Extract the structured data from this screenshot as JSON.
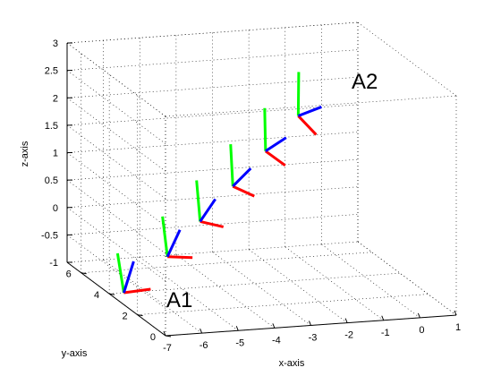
{
  "chart_data": {
    "type": "scatter",
    "title": "",
    "xlabel": "x-axis",
    "ylabel": "y-axis",
    "zlabel": "z-axis",
    "xlim": [
      -7,
      1
    ],
    "ylim": [
      0,
      7
    ],
    "zlim": [
      -1,
      3
    ],
    "x_ticks": [
      "-7",
      "-6",
      "-5",
      "-4",
      "-3",
      "-2",
      "-1",
      "0",
      "1"
    ],
    "y_ticks": [
      "0",
      "2",
      "4",
      "6"
    ],
    "z_ticks": [
      "-1",
      "-0.5",
      "0",
      "0.5",
      "1",
      "1.5",
      "2",
      "2.5",
      "3"
    ],
    "grid": true,
    "grid_style": "dotted",
    "view": "3d",
    "series": [
      {
        "color": "#ff0000",
        "points": [
          [
            -6.6,
            4.0,
            -1.0
          ],
          [
            -5.4,
            4.0,
            -0.4
          ],
          [
            -4.5,
            4.0,
            0.2
          ],
          [
            -3.6,
            4.0,
            0.8
          ],
          [
            -2.7,
            4.0,
            1.4
          ],
          [
            -1.8,
            4.0,
            2.0
          ]
        ]
      },
      {
        "color": "#00ff00",
        "points": [
          [
            -6.6,
            4.0,
            -1.0
          ],
          [
            -5.4,
            4.0,
            -0.4
          ],
          [
            -4.5,
            4.0,
            0.2
          ],
          [
            -3.6,
            4.0,
            0.8
          ],
          [
            -2.7,
            4.0,
            1.4
          ],
          [
            -1.8,
            4.0,
            2.0
          ]
        ]
      },
      {
        "color": "#0000ff",
        "points": [
          [
            -6.6,
            4.0,
            -1.0
          ],
          [
            -5.4,
            4.0,
            -0.4
          ],
          [
            -4.5,
            4.0,
            0.2
          ],
          [
            -3.6,
            4.0,
            0.8
          ],
          [
            -2.7,
            4.0,
            1.4
          ],
          [
            -1.8,
            4.0,
            2.0
          ]
        ]
      }
    ],
    "annotations": [
      {
        "text": "A1",
        "at_frame": 0
      },
      {
        "text": "A2",
        "at_frame": 5
      }
    ]
  }
}
